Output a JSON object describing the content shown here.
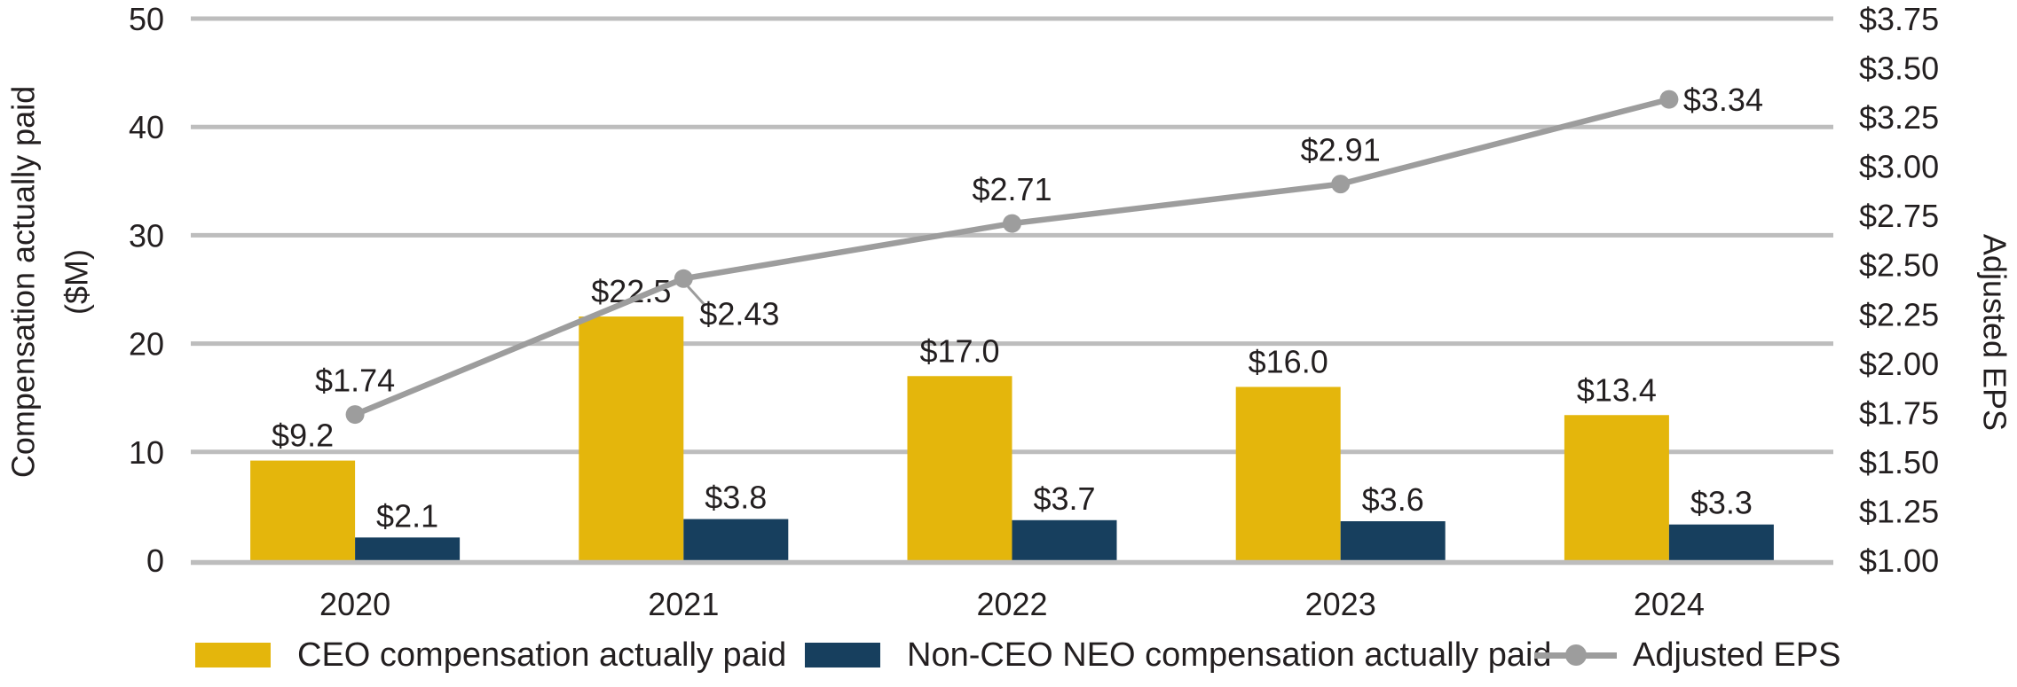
{
  "chart_data": {
    "type": "combo-bar-line",
    "categories": [
      "2020",
      "2021",
      "2022",
      "2023",
      "2024"
    ],
    "series": [
      {
        "name": "CEO compensation actually paid",
        "type": "bar",
        "axis": "left",
        "color": "#E4B60C",
        "values": [
          9.2,
          22.5,
          17.0,
          16.0,
          13.4
        ],
        "value_labels": [
          "$9.2",
          "$22.5",
          "$17.0",
          "$16.0",
          "$13.4"
        ]
      },
      {
        "name": "Non-CEO NEO compensation actually paid",
        "type": "bar",
        "axis": "left",
        "color": "#173F5E",
        "values": [
          2.1,
          3.8,
          3.7,
          3.6,
          3.3
        ],
        "value_labels": [
          "$2.1",
          "$3.8",
          "$3.7",
          "$3.6",
          "$3.3"
        ]
      },
      {
        "name": "Adjusted EPS",
        "type": "line",
        "axis": "right",
        "color": "#9D9D9D",
        "values": [
          1.74,
          2.43,
          2.71,
          2.91,
          3.34
        ],
        "value_labels": [
          "$1.74",
          "$2.43",
          "$2.71",
          "$2.91",
          "$3.34"
        ],
        "label_placements": [
          "above",
          "below-right",
          "above",
          "above",
          "right"
        ]
      }
    ],
    "left_axis": {
      "title": "Compensation actually paid",
      "title_unit": "($M)",
      "min": 0,
      "max": 50,
      "ticks": [
        0,
        10,
        20,
        30,
        40,
        50
      ],
      "tick_labels": [
        "0",
        "10",
        "20",
        "30",
        "40",
        "50"
      ]
    },
    "right_axis": {
      "title": "Adjusted EPS",
      "min": 1.0,
      "max": 3.75,
      "ticks": [
        1.0,
        1.25,
        1.5,
        1.75,
        2.0,
        2.25,
        2.5,
        2.75,
        3.0,
        3.25,
        3.5,
        3.75
      ],
      "tick_labels": [
        "$1.00",
        "$1.25",
        "$1.50",
        "$1.75",
        "$2.00",
        "$2.25",
        "$2.50",
        "$2.75",
        "$3.00",
        "$3.25",
        "$3.50",
        "$3.75"
      ]
    },
    "gridlines": true,
    "legend_position": "bottom"
  },
  "legend": {
    "items": [
      {
        "label": "CEO compensation actually paid",
        "swatch": "bar",
        "color": "#E4B60C"
      },
      {
        "label": "Non-CEO NEO compensation actually paid",
        "swatch": "bar",
        "color": "#173F5E"
      },
      {
        "label": "Adjusted EPS",
        "swatch": "line-marker",
        "color": "#9D9D9D"
      }
    ]
  },
  "colors": {
    "text": "#231F20",
    "gridline": "#BDBDBD",
    "axis_line": "#BDBDBD"
  }
}
